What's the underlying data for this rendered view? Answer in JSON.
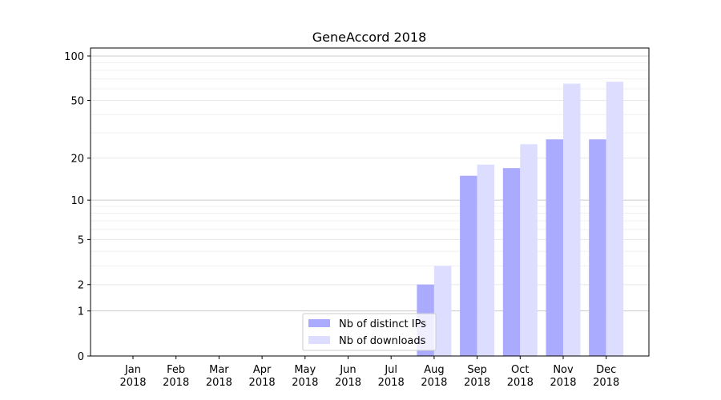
{
  "chart_data": {
    "type": "bar",
    "title": "GeneAccord 2018",
    "xlabel": "",
    "ylabel": "",
    "yscale": "log1p",
    "ylim": [
      0,
      100
    ],
    "yticks": [
      0,
      1,
      2,
      5,
      10,
      20,
      50,
      100
    ],
    "categories": [
      [
        "Jan",
        "2018"
      ],
      [
        "Feb",
        "2018"
      ],
      [
        "Mar",
        "2018"
      ],
      [
        "Apr",
        "2018"
      ],
      [
        "May",
        "2018"
      ],
      [
        "Jun",
        "2018"
      ],
      [
        "Jul",
        "2018"
      ],
      [
        "Aug",
        "2018"
      ],
      [
        "Sep",
        "2018"
      ],
      [
        "Oct",
        "2018"
      ],
      [
        "Nov",
        "2018"
      ],
      [
        "Dec",
        "2018"
      ]
    ],
    "series": [
      {
        "name": "Nb of distinct IPs",
        "color": "#aaaaff",
        "values": [
          0,
          0,
          0,
          0,
          0,
          0,
          0,
          2,
          15,
          17,
          27,
          27
        ]
      },
      {
        "name": "Nb of downloads",
        "color": "#ddddff",
        "values": [
          0,
          0,
          0,
          0,
          0,
          0,
          0,
          3,
          18,
          25,
          65,
          67
        ]
      }
    ],
    "grid": true,
    "legend": "lower-center"
  }
}
